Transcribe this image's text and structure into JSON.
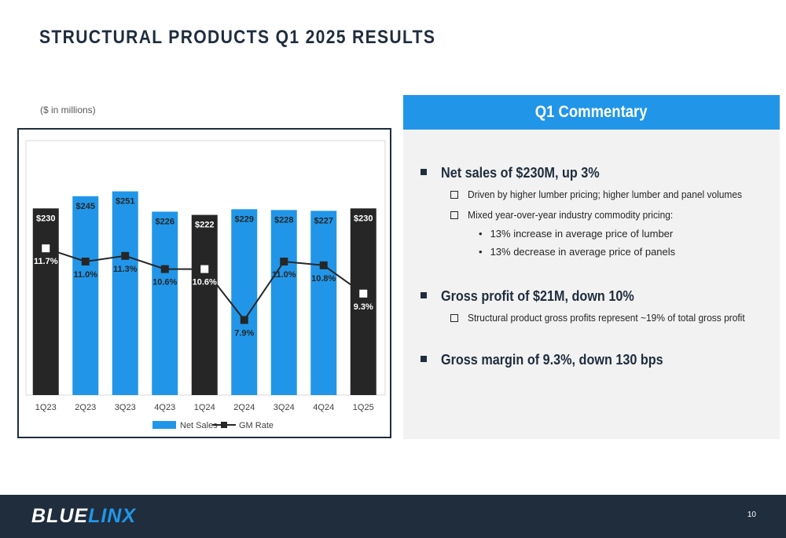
{
  "title": "STRUCTURAL PRODUCTS Q1 2025 RESULTS",
  "units_note": "($ in millions)",
  "colors": {
    "navy": "#1f2d3d",
    "accent_blue": "#2196e8",
    "bar_dark": "#262626",
    "panel_bg": "#f2f2f2"
  },
  "chart_data": {
    "type": "bar",
    "categories": [
      "1Q23",
      "2Q23",
      "3Q23",
      "4Q23",
      "1Q24",
      "2Q24",
      "3Q24",
      "4Q24",
      "1Q25"
    ],
    "series": [
      {
        "name": "Net Sales",
        "type": "bar",
        "values": [
          230,
          245,
          251,
          226,
          222,
          229,
          228,
          227,
          230
        ],
        "labels": [
          "$230",
          "$245",
          "$251",
          "$226",
          "$222",
          "$229",
          "$228",
          "$227",
          "$230"
        ],
        "highlight": [
          true,
          false,
          false,
          false,
          true,
          false,
          false,
          false,
          true
        ]
      },
      {
        "name": "GM Rate",
        "type": "line",
        "values": [
          11.7,
          11.0,
          11.3,
          10.6,
          10.6,
          7.9,
          11.0,
          10.8,
          9.3
        ],
        "labels": [
          "11.7%",
          "11.0%",
          "11.3%",
          "10.6%",
          "10.6%",
          "7.9%",
          "11.0%",
          "10.8%",
          "9.3%"
        ]
      }
    ],
    "legend_position": "bottom",
    "grid": false
  },
  "commentary": {
    "header": "Q1 Commentary",
    "bullets": [
      {
        "text": "Net sales of $230M, up 3%",
        "subs": [
          {
            "text": "Driven by higher lumber pricing; higher lumber and panel volumes"
          },
          {
            "text": "Mixed year-over-year industry commodity pricing:",
            "items": [
              "13% increase in average price of lumber",
              "13% decrease in average price of panels"
            ]
          }
        ]
      },
      {
        "text": "Gross profit of $21M, down 10%",
        "subs": [
          {
            "text": "Structural product gross profits represent ~19% of total gross profit"
          }
        ]
      },
      {
        "text": "Gross margin of 9.3%, down 130 bps",
        "subs": []
      }
    ]
  },
  "footer": {
    "logo_part1": "BLUE",
    "logo_part2": "LINX",
    "page_number": "10"
  }
}
